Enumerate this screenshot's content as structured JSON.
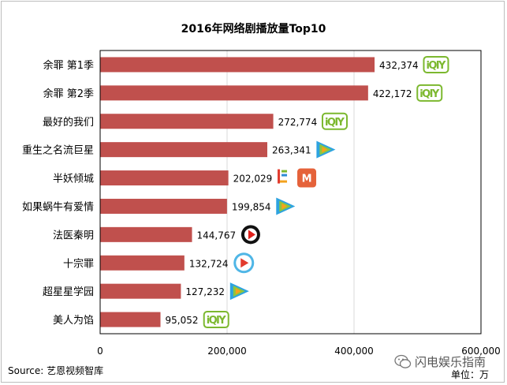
{
  "chart_data": {
    "type": "bar",
    "orientation": "horizontal",
    "title": "2016年网络剧播放量Top10",
    "categories": [
      "余罪 第1季",
      "余罪 第2季",
      "最好的我们",
      "重生之名流巨星",
      "半妖倾城",
      "如果蜗牛有爱情",
      "法医秦明",
      "十宗罪",
      "超星星学园",
      "美人为馅"
    ],
    "values": [
      432374,
      422172,
      272774,
      263341,
      202029,
      199854,
      144767,
      132724,
      127232,
      95052
    ],
    "value_labels": [
      "432,374",
      "422,172",
      "272,774",
      "263,341",
      "202,029",
      "199,854",
      "144,767",
      "132,724",
      "127,232",
      "95,052"
    ],
    "platforms": [
      "iqiyi",
      "iqiyi",
      "iqiyi",
      "tencent-video",
      "letv+mgtv",
      "tencent-video",
      "sohu-video",
      "youku",
      "tencent-video",
      "iqiyi"
    ],
    "xlim": [
      0,
      600000
    ],
    "x_ticks": [
      0,
      200000,
      400000,
      600000
    ],
    "x_tick_labels": [
      "0",
      "200,000",
      "400,000",
      "600,000"
    ],
    "bar_color": "#C0504D",
    "grid": true
  },
  "footer": {
    "source": "Source: 艺恩视频智库",
    "unit": "单位：万",
    "watermark": "闪电娱乐指南"
  }
}
